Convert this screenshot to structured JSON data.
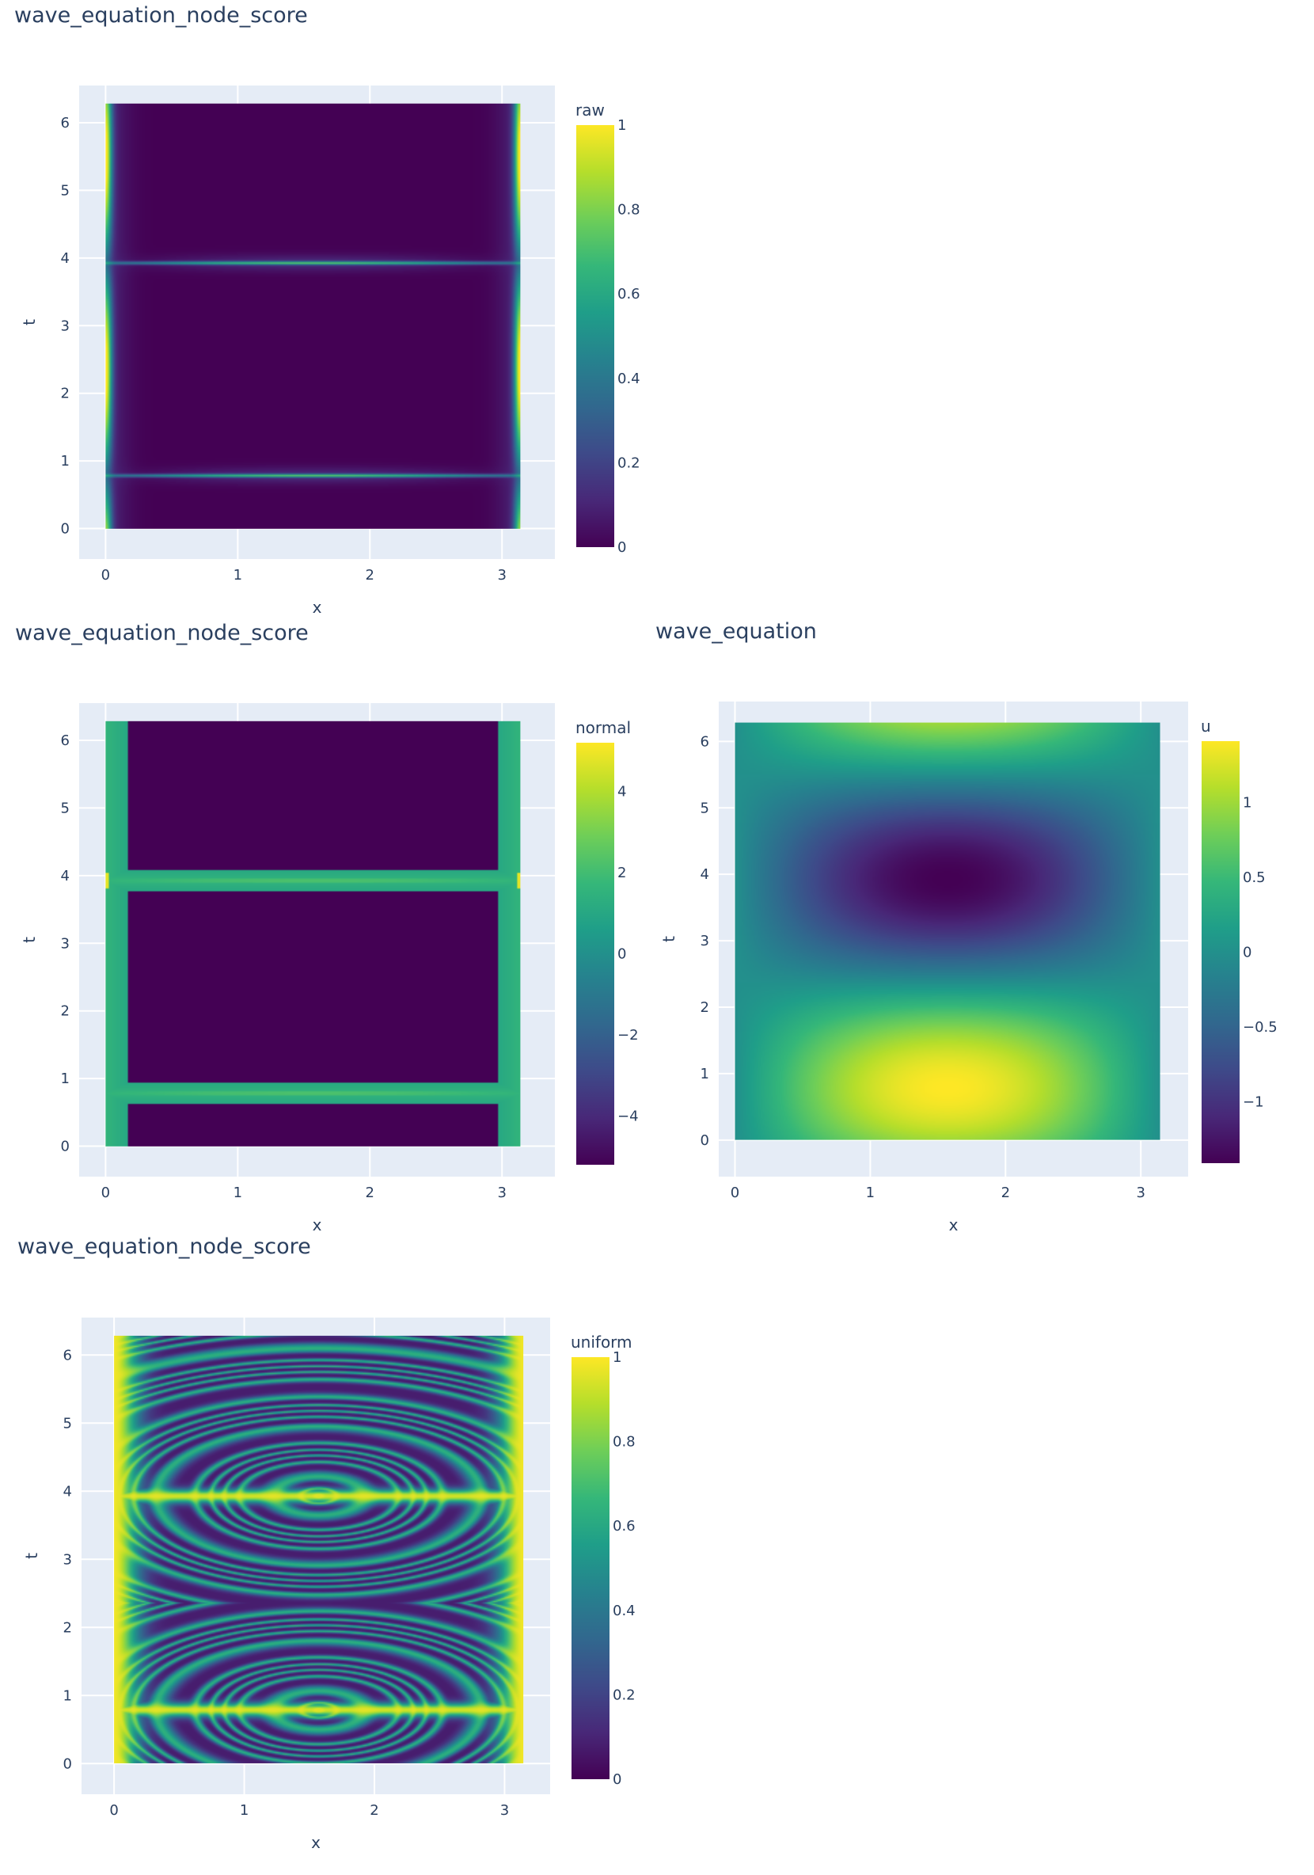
{
  "chart_data": [
    {
      "type": "heatmap",
      "title": "wave_equation_node_score",
      "xlabel": "x",
      "ylabel": "t",
      "xlim": [
        -0.2,
        3.4
      ],
      "ylim": [
        -0.45,
        6.55
      ],
      "xticks": [
        "0",
        "1",
        "2",
        "3"
      ],
      "yticks": [
        "0",
        "1",
        "2",
        "3",
        "4",
        "5",
        "6"
      ],
      "colorbar": {
        "title": "raw",
        "min": 0,
        "max": 1,
        "ticks": [
          "0",
          "0.2",
          "0.4",
          "0.6",
          "0.8",
          "1"
        ],
        "tick_values": [
          0,
          0.2,
          0.4,
          0.6,
          0.8,
          1
        ]
      },
      "colorscale": "Viridis",
      "field": "raw",
      "data_extent": {
        "x": [
          0,
          3.14159
        ],
        "t": [
          0,
          6.28318
        ]
      }
    },
    {
      "type": "heatmap",
      "title": "wave_equation_node_score",
      "xlabel": "x",
      "ylabel": "t",
      "xlim": [
        -0.2,
        3.4
      ],
      "ylim": [
        -0.45,
        6.55
      ],
      "xticks": [
        "0",
        "1",
        "2",
        "3"
      ],
      "yticks": [
        "0",
        "1",
        "2",
        "3",
        "4",
        "5",
        "6"
      ],
      "colorbar": {
        "title": "normal",
        "min": -5.2,
        "max": 5.2,
        "ticks": [
          "−4",
          "−2",
          "0",
          "2",
          "4"
        ],
        "tick_values": [
          -4,
          -2,
          0,
          2,
          4
        ]
      },
      "colorscale": "Viridis",
      "field": "normal",
      "data_extent": {
        "x": [
          0,
          3.14159
        ],
        "t": [
          0,
          6.28318
        ]
      }
    },
    {
      "type": "heatmap",
      "title": "wave_equation",
      "xlabel": "x",
      "ylabel": "t",
      "xlim": [
        -0.12,
        3.35
      ],
      "ylim": [
        -0.55,
        6.6
      ],
      "xticks": [
        "0",
        "1",
        "2",
        "3"
      ],
      "yticks": [
        "0",
        "1",
        "2",
        "3",
        "4",
        "5",
        "6"
      ],
      "colorbar": {
        "title": "u",
        "min": -1.41,
        "max": 1.41,
        "ticks": [
          "−1",
          "−0.5",
          "0",
          "0.5",
          "1"
        ],
        "tick_values": [
          -1,
          -0.5,
          0,
          0.5,
          1
        ]
      },
      "colorscale": "Viridis",
      "field": "u",
      "data_extent": {
        "x": [
          0,
          3.14159
        ],
        "t": [
          0,
          6.28318
        ]
      }
    },
    {
      "type": "heatmap",
      "title": "wave_equation_node_score",
      "xlabel": "x",
      "ylabel": "t",
      "xlim": [
        -0.25,
        3.35
      ],
      "ylim": [
        -0.45,
        6.55
      ],
      "xticks": [
        "0",
        "1",
        "2",
        "3"
      ],
      "yticks": [
        "0",
        "1",
        "2",
        "3",
        "4",
        "5",
        "6"
      ],
      "colorbar": {
        "title": "uniform",
        "min": 0,
        "max": 1,
        "ticks": [
          "0",
          "0.2",
          "0.4",
          "0.6",
          "0.8",
          "1"
        ],
        "tick_values": [
          0,
          0.2,
          0.4,
          0.6,
          0.8,
          1
        ]
      },
      "colorscale": "Viridis",
      "field": "uniform",
      "data_extent": {
        "x": [
          0,
          3.14159
        ],
        "t": [
          0,
          6.28318
        ]
      }
    }
  ]
}
